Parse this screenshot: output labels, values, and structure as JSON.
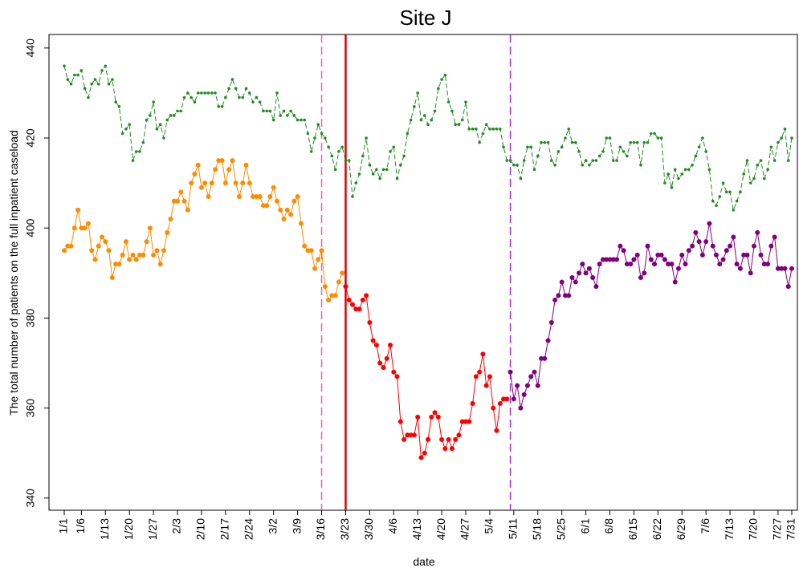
{
  "chart_data": {
    "type": "line",
    "title": "Site J",
    "xlabel": "date",
    "ylabel": "The total number of patients on the full inpatient caseload",
    "categories": [
      "1/1",
      null,
      null,
      null,
      null,
      "1/6",
      null,
      null,
      null,
      null,
      null,
      null,
      "1/13",
      null,
      null,
      null,
      null,
      null,
      null,
      "1/20",
      null,
      null,
      null,
      null,
      null,
      null,
      "1/27",
      null,
      null,
      null,
      null,
      null,
      null,
      "2/3",
      null,
      null,
      null,
      null,
      null,
      null,
      "2/10",
      null,
      null,
      null,
      null,
      null,
      null,
      "2/17",
      null,
      null,
      null,
      null,
      null,
      null,
      "2/24",
      null,
      null,
      null,
      null,
      null,
      null,
      "3/2",
      null,
      null,
      null,
      null,
      null,
      null,
      "3/9",
      null,
      null,
      null,
      null,
      null,
      null,
      "3/16",
      null,
      null,
      null,
      null,
      null,
      null,
      "3/23",
      null,
      null,
      null,
      null,
      null,
      null,
      "3/30",
      null,
      null,
      null,
      null,
      null,
      null,
      "4/6",
      null,
      null,
      null,
      null,
      null,
      null,
      "4/13",
      null,
      null,
      null,
      null,
      null,
      null,
      "4/20",
      null,
      null,
      null,
      null,
      null,
      null,
      "4/27",
      null,
      null,
      null,
      null,
      null,
      null,
      "5/4",
      null,
      null,
      null,
      null,
      null,
      null,
      "5/11",
      null,
      null,
      null,
      null,
      null,
      null,
      "5/18",
      null,
      null,
      null,
      null,
      null,
      null,
      "5/25",
      null,
      null,
      null,
      null,
      null,
      null,
      "6/1",
      null,
      null,
      null,
      null,
      null,
      null,
      "6/8",
      null,
      null,
      null,
      null,
      null,
      null,
      "6/15",
      null,
      null,
      null,
      null,
      null,
      null,
      "6/22",
      null,
      null,
      null,
      null,
      null,
      null,
      "6/29",
      null,
      null,
      null,
      null,
      null,
      null,
      "7/6",
      null,
      null,
      null,
      null,
      null,
      null,
      "7/13",
      null,
      null,
      null,
      null,
      null,
      null,
      "7/20",
      null,
      null,
      null,
      null,
      null,
      null,
      "7/27",
      null,
      null,
      null,
      "7/31"
    ],
    "series": [
      {
        "color": "#228b22",
        "dashed": true,
        "values": [
          436,
          433,
          432,
          434,
          434,
          435,
          431,
          429,
          432,
          433,
          432,
          435,
          436,
          432,
          433,
          428,
          427,
          421,
          422,
          423,
          415,
          417,
          417,
          419,
          424,
          425,
          428,
          422,
          423,
          420,
          424,
          425,
          425,
          426,
          426,
          429,
          430,
          429,
          428,
          430,
          430,
          430,
          430,
          430,
          430,
          427,
          427,
          429,
          431,
          433,
          431,
          429,
          429,
          431,
          430,
          428,
          429,
          428,
          426,
          426,
          426,
          424,
          430,
          425,
          426,
          425,
          426,
          425,
          424,
          424,
          424,
          421,
          417,
          420,
          423,
          421,
          420,
          418,
          416,
          413,
          417,
          418,
          415,
          415,
          407,
          410,
          412,
          416,
          420,
          414,
          412,
          413,
          411,
          413,
          413,
          417,
          418,
          411,
          414,
          416,
          421,
          424,
          427,
          430,
          424,
          425,
          423,
          424,
          426,
          431,
          433,
          434,
          428,
          426,
          423,
          423,
          424,
          428,
          422,
          422,
          422,
          419,
          421,
          423,
          422,
          422,
          422,
          422,
          418,
          415,
          415,
          414,
          414,
          411,
          415,
          418,
          418,
          413,
          416,
          419,
          419,
          419,
          415,
          414,
          417,
          418,
          420,
          422,
          419,
          419,
          417,
          414,
          415,
          414,
          415,
          415,
          416,
          417,
          420,
          420,
          415,
          415,
          418,
          417,
          416,
          419,
          419,
          419,
          414,
          419,
          419,
          421,
          421,
          420,
          420,
          410,
          412,
          409,
          413,
          411,
          412,
          413,
          413,
          414,
          416,
          418,
          420,
          417,
          413,
          406,
          405,
          407,
          410,
          408,
          408,
          404,
          406,
          408,
          412,
          415,
          410,
          411,
          414,
          415,
          411,
          413,
          418,
          415,
          419,
          420,
          422,
          415,
          420
        ]
      },
      {
        "color": "#ff8c00",
        "dashed": false,
        "values": [
          395,
          396,
          396,
          400,
          404,
          400,
          400,
          401,
          395,
          393,
          396,
          398,
          397,
          395,
          389,
          392,
          392,
          394,
          397,
          393,
          394,
          393,
          394,
          394,
          397,
          400,
          394,
          395,
          392,
          395,
          399,
          402,
          406,
          406,
          408,
          406,
          404,
          410,
          412,
          414,
          409,
          410,
          407,
          410,
          413,
          415,
          415,
          410,
          413,
          415,
          410,
          407,
          410,
          414,
          410,
          407,
          407,
          407,
          405,
          405,
          407,
          409,
          406,
          404,
          402,
          404,
          403,
          406,
          407,
          401,
          396,
          395,
          395,
          391,
          393,
          395,
          387,
          384,
          385,
          385,
          388,
          390,
          null,
          null,
          null,
          null,
          null,
          null,
          null,
          null,
          null,
          null,
          null,
          null,
          null,
          null,
          null,
          null,
          null,
          null,
          null,
          null,
          null,
          null,
          null,
          null,
          null,
          null,
          null,
          null,
          null,
          null,
          null,
          null,
          null,
          null,
          null,
          null,
          null,
          null,
          null,
          null,
          null,
          null,
          null,
          null,
          null,
          null,
          null,
          null,
          null,
          null,
          null,
          null,
          null,
          null,
          null,
          null,
          null,
          null,
          null,
          null,
          null,
          null,
          null,
          null,
          null,
          null,
          null,
          null,
          null,
          null,
          null,
          null,
          null,
          null,
          null,
          null,
          null,
          null,
          null,
          null,
          null,
          null,
          null,
          null,
          null,
          null,
          null,
          null,
          null,
          null,
          null,
          null,
          null,
          null,
          null,
          null,
          null,
          null,
          null,
          null,
          null,
          null,
          null,
          null,
          null,
          null,
          null,
          null,
          null,
          null,
          null,
          null,
          null,
          null,
          null,
          null,
          null,
          null,
          null,
          null,
          null,
          null,
          null,
          null,
          null,
          null,
          null,
          null,
          null,
          null,
          null
        ]
      },
      {
        "color": "#ff0000",
        "dashed": false,
        "values": [
          null,
          null,
          null,
          null,
          null,
          null,
          null,
          null,
          null,
          null,
          null,
          null,
          null,
          null,
          null,
          null,
          null,
          null,
          null,
          null,
          null,
          null,
          null,
          null,
          null,
          null,
          null,
          null,
          null,
          null,
          null,
          null,
          null,
          null,
          null,
          null,
          null,
          null,
          null,
          null,
          null,
          null,
          null,
          null,
          null,
          null,
          null,
          null,
          null,
          null,
          null,
          null,
          null,
          null,
          null,
          null,
          null,
          null,
          null,
          null,
          null,
          null,
          null,
          null,
          null,
          null,
          null,
          null,
          null,
          null,
          null,
          null,
          null,
          null,
          null,
          null,
          null,
          null,
          null,
          null,
          null,
          null,
          387,
          384,
          383,
          382,
          382,
          384,
          385,
          379,
          375,
          374,
          370,
          369,
          371,
          374,
          368,
          367,
          357,
          353,
          354,
          354,
          354,
          358,
          349,
          350,
          353,
          358,
          359,
          358,
          353,
          351,
          353,
          351,
          353,
          354,
          357,
          357,
          357,
          361,
          367,
          368,
          372,
          365,
          367,
          360,
          355,
          361,
          362,
          362,
          null,
          null,
          null,
          null,
          null,
          null,
          null,
          null,
          null,
          null,
          null,
          null,
          null,
          null,
          null,
          null,
          null,
          null,
          null,
          null,
          null,
          null,
          null,
          null,
          null,
          null,
          null,
          null,
          null,
          null,
          null,
          null,
          null,
          null,
          null,
          null,
          null,
          null,
          null,
          null,
          null,
          null,
          null,
          null,
          null,
          null,
          null,
          null,
          null,
          null,
          null,
          null,
          null,
          null,
          null,
          null,
          null,
          null,
          null,
          null,
          null,
          null,
          null,
          null,
          null,
          null,
          null,
          null,
          null,
          null,
          null,
          null,
          null,
          null,
          null,
          null,
          null,
          null,
          null,
          null,
          null,
          null,
          null
        ]
      },
      {
        "color": "#800080",
        "dashed": false,
        "values": [
          null,
          null,
          null,
          null,
          null,
          null,
          null,
          null,
          null,
          null,
          null,
          null,
          null,
          null,
          null,
          null,
          null,
          null,
          null,
          null,
          null,
          null,
          null,
          null,
          null,
          null,
          null,
          null,
          null,
          null,
          null,
          null,
          null,
          null,
          null,
          null,
          null,
          null,
          null,
          null,
          null,
          null,
          null,
          null,
          null,
          null,
          null,
          null,
          null,
          null,
          null,
          null,
          null,
          null,
          null,
          null,
          null,
          null,
          null,
          null,
          null,
          null,
          null,
          null,
          null,
          null,
          null,
          null,
          null,
          null,
          null,
          null,
          null,
          null,
          null,
          null,
          null,
          null,
          null,
          null,
          null,
          null,
          null,
          null,
          null,
          null,
          null,
          null,
          null,
          null,
          null,
          null,
          null,
          null,
          null,
          null,
          null,
          null,
          null,
          null,
          null,
          null,
          null,
          null,
          null,
          null,
          null,
          null,
          null,
          null,
          null,
          null,
          null,
          null,
          null,
          null,
          null,
          null,
          null,
          null,
          null,
          null,
          null,
          null,
          null,
          null,
          null,
          null,
          null,
          null,
          368,
          362,
          365,
          360,
          363,
          365,
          367,
          368,
          365,
          371,
          371,
          375,
          379,
          384,
          385,
          388,
          385,
          385,
          389,
          388,
          390,
          392,
          390,
          391,
          389,
          387,
          392,
          393,
          393,
          393,
          393,
          393,
          396,
          395,
          392,
          392,
          393,
          394,
          389,
          390,
          396,
          393,
          392,
          394,
          394,
          393,
          392,
          392,
          388,
          391,
          394,
          392,
          395,
          396,
          399,
          397,
          394,
          397,
          401,
          396,
          394,
          392,
          393,
          395,
          396,
          398,
          392,
          391,
          394,
          394,
          390,
          396,
          399,
          394,
          392,
          392,
          396,
          398,
          391,
          391,
          391,
          387,
          391
        ]
      }
    ],
    "vlines": [
      {
        "at": 75,
        "color": "#e066b0",
        "dashed": true
      },
      {
        "at": 82,
        "color": "#e00000",
        "dashed": false
      },
      {
        "at": 130,
        "color": "#a030c0",
        "dashed": true
      }
    ],
    "ylim": [
      337.3,
      443
    ],
    "yticks": [
      340,
      360,
      380,
      400,
      420,
      440
    ],
    "grid": false
  }
}
